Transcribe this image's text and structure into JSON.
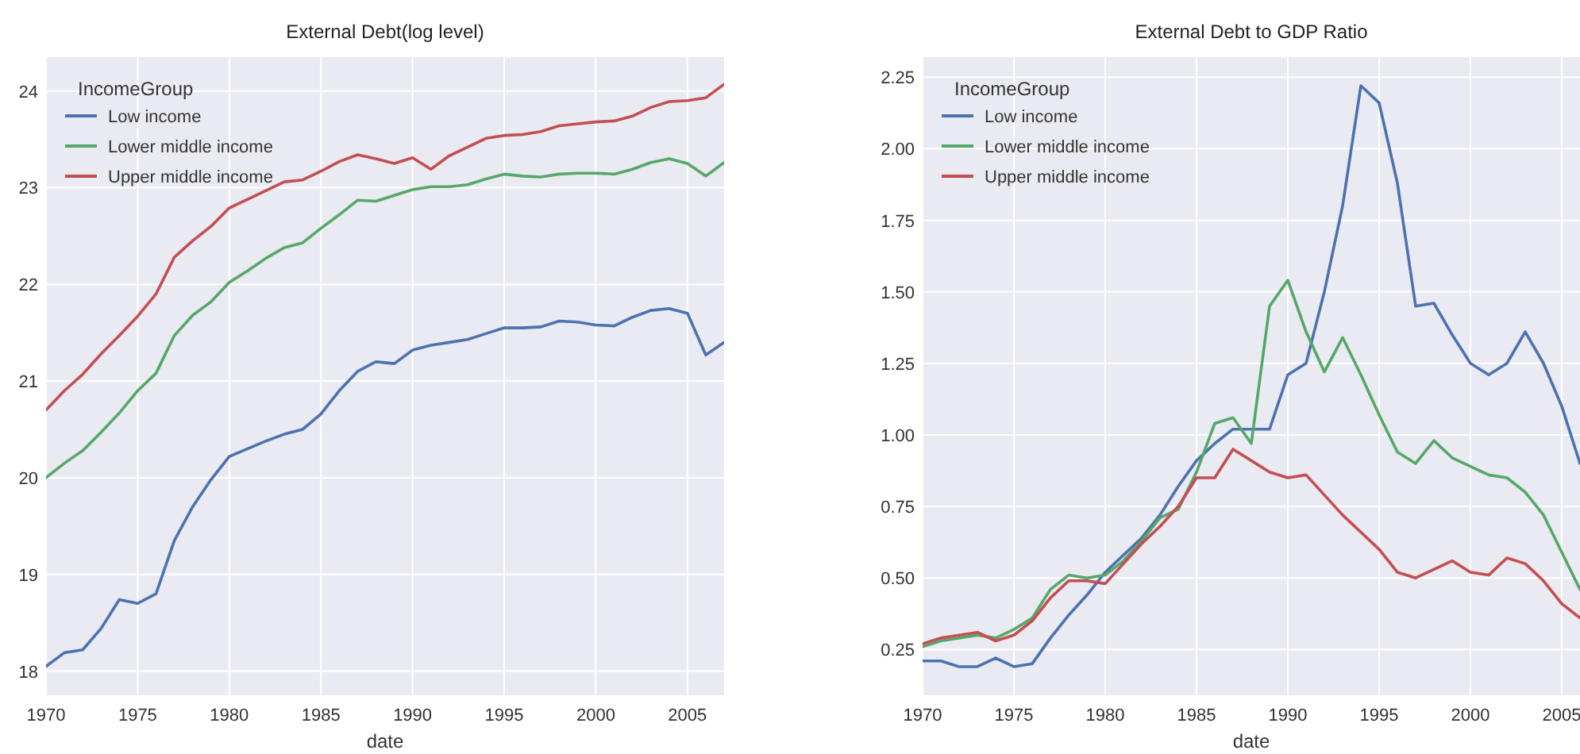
{
  "chart_data": [
    {
      "type": "line",
      "title": "External Debt(log level)",
      "xlabel": "date",
      "legend_title": "IncomeGroup",
      "legend": "top left",
      "grid": true,
      "line_style": "solid",
      "x": [
        1970,
        1971,
        1972,
        1973,
        1974,
        1975,
        1976,
        1977,
        1978,
        1979,
        1980,
        1981,
        1982,
        1983,
        1984,
        1985,
        1986,
        1987,
        1988,
        1989,
        1990,
        1991,
        1992,
        1993,
        1994,
        1995,
        1996,
        1997,
        1998,
        1999,
        2000,
        2001,
        2002,
        2003,
        2004,
        2005,
        2006,
        2007
      ],
      "xlim": [
        1970,
        2007
      ],
      "xticks": [
        1970,
        1975,
        1980,
        1985,
        1990,
        1995,
        2000,
        2005
      ],
      "ylim": [
        17.75,
        24.35
      ],
      "yticks": [
        18,
        19,
        20,
        21,
        22,
        23,
        24
      ],
      "series": [
        {
          "name": "Low income",
          "color": "#4c72b0",
          "values": [
            18.05,
            18.19,
            18.22,
            18.44,
            18.74,
            18.7,
            18.8,
            19.35,
            19.7,
            19.98,
            20.22,
            20.3,
            20.38,
            20.45,
            20.5,
            20.66,
            20.9,
            21.1,
            21.2,
            21.18,
            21.32,
            21.37,
            21.4,
            21.43,
            21.49,
            21.55,
            21.55,
            21.56,
            21.62,
            21.61,
            21.58,
            21.57,
            21.66,
            21.73,
            21.75,
            21.7,
            21.27,
            21.4
          ]
        },
        {
          "name": "Lower middle income",
          "color": "#55a868",
          "values": [
            20.0,
            20.15,
            20.28,
            20.47,
            20.67,
            20.9,
            21.08,
            21.47,
            21.68,
            21.82,
            22.02,
            22.14,
            22.27,
            22.38,
            22.43,
            22.58,
            22.72,
            22.87,
            22.86,
            22.92,
            22.98,
            23.01,
            23.01,
            23.03,
            23.09,
            23.14,
            23.12,
            23.11,
            23.14,
            23.15,
            23.15,
            23.14,
            23.19,
            23.26,
            23.3,
            23.25,
            23.12,
            23.26
          ]
        },
        {
          "name": "Upper middle income",
          "color": "#c44e52",
          "values": [
            20.7,
            20.9,
            21.07,
            21.28,
            21.47,
            21.67,
            21.9,
            22.28,
            22.45,
            22.6,
            22.79,
            22.88,
            22.97,
            23.06,
            23.08,
            23.17,
            23.27,
            23.34,
            23.3,
            23.25,
            23.31,
            23.19,
            23.33,
            23.42,
            23.51,
            23.54,
            23.55,
            23.58,
            23.64,
            23.66,
            23.68,
            23.69,
            23.74,
            23.83,
            23.89,
            23.9,
            23.93,
            24.07
          ]
        }
      ]
    },
    {
      "type": "line",
      "title": "External Debt to GDP Ratio",
      "xlabel": "date",
      "legend_title": "IncomeGroup",
      "legend": "top left",
      "grid": true,
      "line_style": "solid",
      "x": [
        1970,
        1971,
        1972,
        1973,
        1974,
        1975,
        1976,
        1977,
        1978,
        1979,
        1980,
        1981,
        1982,
        1983,
        1984,
        1985,
        1986,
        1987,
        1988,
        1989,
        1990,
        1991,
        1992,
        1993,
        1994,
        1995,
        1996,
        1997,
        1998,
        1999,
        2000,
        2001,
        2002,
        2003,
        2004,
        2005,
        2006
      ],
      "xlim": [
        1970,
        2006
      ],
      "xticks": [
        1970,
        1975,
        1980,
        1985,
        1990,
        1995,
        2000,
        2005
      ],
      "ylim": [
        0.09,
        2.32
      ],
      "yticks": [
        {
          "value": 0.25,
          "label": "0.25"
        },
        {
          "value": 0.5,
          "label": "0.50"
        },
        {
          "value": 0.75,
          "label": "0.75"
        },
        {
          "value": 1,
          "label": "1.00"
        },
        {
          "value": 1.25,
          "label": "1.25"
        },
        {
          "value": 1.5,
          "label": "1.50"
        },
        {
          "value": 1.75,
          "label": "1.75"
        },
        {
          "value": 2,
          "label": "2.00"
        },
        {
          "value": 2.25,
          "label": "2.25"
        }
      ],
      "series": [
        {
          "name": "Low income",
          "color": "#4c72b0",
          "values": [
            0.21,
            0.21,
            0.19,
            0.19,
            0.22,
            0.19,
            0.2,
            0.29,
            0.37,
            0.44,
            0.52,
            0.58,
            0.64,
            0.72,
            0.82,
            0.91,
            0.97,
            1.02,
            1.02,
            1.02,
            1.21,
            1.25,
            1.5,
            1.8,
            2.22,
            2.16,
            1.88,
            1.45,
            1.46,
            1.35,
            1.25,
            1.21,
            1.25,
            1.36,
            1.25,
            1.1,
            0.9
          ]
        },
        {
          "name": "Lower middle income",
          "color": "#55a868",
          "values": [
            0.26,
            0.28,
            0.29,
            0.3,
            0.29,
            0.32,
            0.36,
            0.46,
            0.51,
            0.5,
            0.51,
            0.56,
            0.63,
            0.71,
            0.74,
            0.87,
            1.04,
            1.06,
            0.97,
            1.45,
            1.54,
            1.36,
            1.22,
            1.34,
            1.21,
            1.07,
            0.94,
            0.9,
            0.98,
            0.92,
            0.89,
            0.86,
            0.85,
            0.8,
            0.72,
            0.59,
            0.46
          ]
        },
        {
          "name": "Upper middle income",
          "color": "#c44e52",
          "values": [
            0.27,
            0.29,
            0.3,
            0.31,
            0.28,
            0.3,
            0.35,
            0.43,
            0.49,
            0.49,
            0.48,
            0.55,
            0.62,
            0.68,
            0.75,
            0.85,
            0.85,
            0.95,
            0.91,
            0.87,
            0.85,
            0.86,
            0.79,
            0.72,
            0.66,
            0.6,
            0.52,
            0.5,
            0.53,
            0.56,
            0.52,
            0.51,
            0.57,
            0.55,
            0.49,
            0.41,
            0.36
          ]
        }
      ]
    }
  ]
}
